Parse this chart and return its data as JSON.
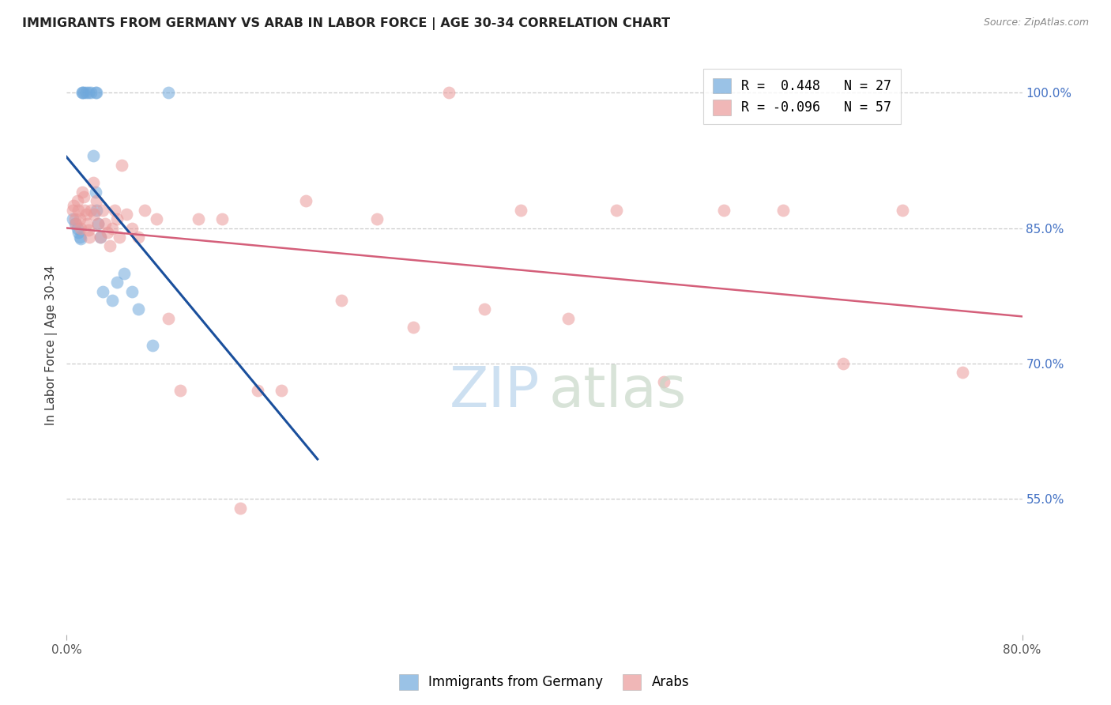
{
  "title": "IMMIGRANTS FROM GERMANY VS ARAB IN LABOR FORCE | AGE 30-34 CORRELATION CHART",
  "source": "Source: ZipAtlas.com",
  "ylabel": "In Labor Force | Age 30-34",
  "xlim": [
    0.0,
    0.8
  ],
  "ylim": [
    0.4,
    1.04
  ],
  "yticks_right": [
    0.55,
    0.7,
    0.85,
    1.0
  ],
  "yticklabels_right": [
    "55.0%",
    "70.0%",
    "85.0%",
    "100.0%"
  ],
  "germany_color": "#6fa8dc",
  "arab_color": "#ea9999",
  "germany_line_color": "#1a4f9c",
  "arab_line_color": "#d45f7a",
  "legend_line1": "R =  0.448   N = 27",
  "legend_line2": "R = -0.096   N = 57",
  "watermark_zip": "ZIP",
  "watermark_atlas": "atlas",
  "germany_x": [
    0.005,
    0.007,
    0.009,
    0.01,
    0.011,
    0.012,
    0.013,
    0.013,
    0.014,
    0.016,
    0.018,
    0.02,
    0.022,
    0.024,
    0.024,
    0.025,
    0.025,
    0.026,
    0.028,
    0.03,
    0.038,
    0.042,
    0.048,
    0.055,
    0.06,
    0.072,
    0.085
  ],
  "germany_y": [
    0.86,
    0.855,
    0.85,
    0.845,
    0.84,
    0.838,
    1.0,
    1.0,
    1.0,
    1.0,
    1.0,
    1.0,
    0.93,
    0.89,
    1.0,
    1.0,
    0.87,
    0.855,
    0.84,
    0.78,
    0.77,
    0.79,
    0.8,
    0.78,
    0.76,
    0.72,
    1.0
  ],
  "arab_x": [
    0.005,
    0.006,
    0.007,
    0.008,
    0.009,
    0.01,
    0.011,
    0.012,
    0.013,
    0.014,
    0.015,
    0.016,
    0.017,
    0.018,
    0.019,
    0.02,
    0.022,
    0.023,
    0.025,
    0.026,
    0.028,
    0.03,
    0.032,
    0.034,
    0.036,
    0.038,
    0.04,
    0.042,
    0.044,
    0.046,
    0.05,
    0.055,
    0.06,
    0.065,
    0.075,
    0.085,
    0.095,
    0.11,
    0.13,
    0.145,
    0.16,
    0.18,
    0.2,
    0.23,
    0.26,
    0.29,
    0.32,
    0.35,
    0.38,
    0.42,
    0.46,
    0.5,
    0.55,
    0.6,
    0.65,
    0.7,
    0.75
  ],
  "arab_y": [
    0.87,
    0.875,
    0.86,
    0.855,
    0.88,
    0.87,
    0.86,
    0.85,
    0.89,
    0.885,
    0.87,
    0.865,
    0.855,
    0.848,
    0.84,
    0.87,
    0.9,
    0.865,
    0.88,
    0.855,
    0.84,
    0.87,
    0.855,
    0.845,
    0.83,
    0.85,
    0.87,
    0.86,
    0.84,
    0.92,
    0.865,
    0.85,
    0.84,
    0.87,
    0.86,
    0.75,
    0.67,
    0.86,
    0.86,
    0.54,
    0.67,
    0.67,
    0.88,
    0.77,
    0.86,
    0.74,
    1.0,
    0.76,
    0.87,
    0.75,
    0.87,
    0.68,
    0.87,
    0.87,
    0.7,
    0.87,
    0.69
  ],
  "bottom_legend_label1": "Immigrants from Germany",
  "bottom_legend_label2": "Arabs"
}
